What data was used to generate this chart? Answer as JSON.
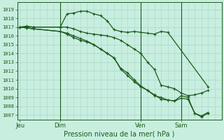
{
  "background_color": "#c8eee0",
  "grid_color": "#a8d8c8",
  "line_color": "#1a5c1a",
  "xlabel": "Pression niveau de la mer( hPa )",
  "ylim": [
    1006.5,
    1019.8
  ],
  "yticks": [
    1007,
    1008,
    1009,
    1010,
    1011,
    1012,
    1013,
    1014,
    1015,
    1016,
    1017,
    1018,
    1019
  ],
  "xtick_labels": [
    "Jeu",
    "Dim",
    "Ven",
    "Sam"
  ],
  "xtick_positions": [
    0,
    3,
    9,
    12
  ],
  "xlim": [
    -0.2,
    15.0
  ],
  "series": [
    {
      "x": [
        0,
        0.5,
        1.0,
        3.0,
        3.5,
        4.0,
        4.5,
        5.0,
        5.5,
        6.0,
        6.5,
        7.0,
        7.5,
        8.0,
        8.5,
        9.0,
        9.5,
        10.0,
        10.5,
        11.0,
        14.0
      ],
      "y": [
        1017.0,
        1017.1,
        1017.0,
        1017.0,
        1018.5,
        1018.6,
        1018.8,
        1018.8,
        1018.5,
        1018.3,
        1017.7,
        1016.7,
        1016.5,
        1016.4,
        1016.5,
        1016.4,
        1016.3,
        1016.2,
        1016.5,
        1016.4,
        1010.2
      ]
    },
    {
      "x": [
        0,
        0.5,
        1.0,
        3.0,
        3.5,
        4.0,
        4.5,
        5.0,
        5.5,
        6.0,
        6.5,
        7.0,
        7.5,
        8.0,
        8.5,
        9.0,
        9.5,
        10.0,
        10.5,
        11.0,
        11.5,
        12.0,
        12.5,
        13.0,
        13.5,
        14.0
      ],
      "y": [
        1017.0,
        1017.0,
        1017.0,
        1017.0,
        1017.0,
        1016.8,
        1016.5,
        1016.3,
        1016.2,
        1016.1,
        1016.0,
        1015.8,
        1015.5,
        1015.0,
        1014.5,
        1014.0,
        1013.0,
        1012.2,
        1010.4,
        1010.2,
        1010.0,
        1009.5,
        1009.2,
        1009.3,
        1009.5,
        1009.8
      ]
    },
    {
      "x": [
        0,
        0.5,
        1.0,
        3.0,
        3.5,
        4.0,
        4.5,
        5.0,
        5.5,
        6.0,
        6.5,
        7.0,
        7.5,
        8.0,
        8.5,
        9.0,
        9.5,
        10.0,
        10.5,
        11.0,
        11.5,
        12.0,
        12.5,
        13.0,
        13.5,
        14.0
      ],
      "y": [
        1017.0,
        1016.9,
        1016.8,
        1016.5,
        1016.2,
        1015.8,
        1015.5,
        1015.3,
        1015.0,
        1014.5,
        1014.0,
        1013.5,
        1012.3,
        1011.8,
        1011.0,
        1010.3,
        1009.8,
        1009.2,
        1009.0,
        1008.7,
        1008.6,
        1009.2,
        1009.0,
        1007.2,
        1006.9,
        1007.3
      ]
    },
    {
      "x": [
        0,
        0.5,
        1.0,
        3.0,
        3.5,
        4.0,
        4.5,
        5.0,
        5.5,
        6.0,
        6.5,
        7.0,
        7.5,
        8.0,
        8.5,
        9.0,
        9.5,
        10.0,
        10.5,
        11.0,
        11.5,
        12.0,
        12.5,
        13.0,
        13.5,
        14.0
      ],
      "y": [
        1017.0,
        1016.9,
        1016.8,
        1016.5,
        1016.3,
        1016.0,
        1015.7,
        1015.4,
        1015.0,
        1014.5,
        1014.0,
        1013.5,
        1012.2,
        1011.5,
        1010.8,
        1010.2,
        1009.8,
        1009.3,
        1008.8,
        1008.7,
        1008.6,
        1008.9,
        1008.8,
        1007.2,
        1006.8,
        1007.2
      ]
    }
  ]
}
